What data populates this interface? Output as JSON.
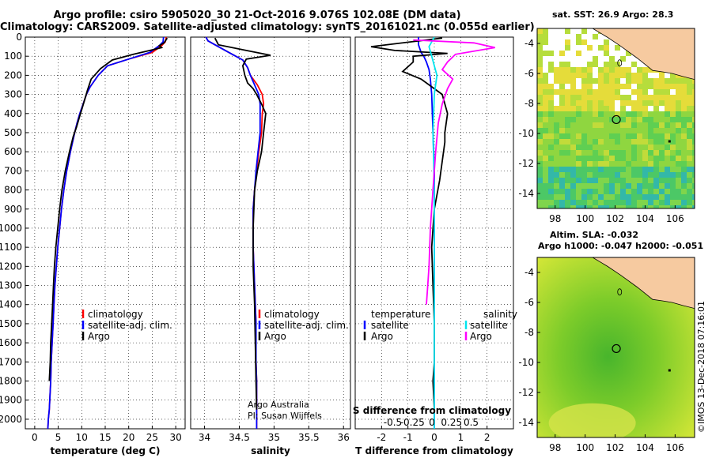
{
  "header": {
    "line1": "Argo profile: csiro 5905020_30 21-Oct-2016 9.076S 102.08E (DM data)",
    "line2": "Climatology: CARS2009. Satellite-adjusted climatology: synTS_20161021.nc (0.055d earlier)"
  },
  "colors": {
    "climatology": "#ff0000",
    "satellite": "#0000ff",
    "argo": "#000000",
    "satellite_salinity": "#00e5ee",
    "argo_salinity": "#ff00ff"
  },
  "chart_data": [
    {
      "type": "line",
      "xlabel": "temperature (deg C)",
      "ylabel": "",
      "xlim": [
        -2,
        32
      ],
      "ylim": [
        2050,
        0
      ],
      "xticks": [
        0,
        5,
        10,
        15,
        20,
        25,
        30
      ],
      "yticks": [
        0,
        100,
        200,
        300,
        400,
        500,
        600,
        700,
        800,
        900,
        1000,
        1100,
        1200,
        1300,
        1400,
        1500,
        1600,
        1700,
        1800,
        1900,
        2000
      ],
      "legend": [
        "climatology",
        "satellite-adj. clim.",
        "Argo"
      ],
      "legend_position": "lower-right",
      "series": [
        {
          "name": "climatology",
          "color": "#ff0000",
          "x": [
            28.0,
            27.8,
            27.0,
            25.0,
            20.0,
            15.5,
            13.5,
            11.8,
            11.0,
            10.3,
            9.6,
            9.0,
            8.5,
            7.6,
            6.8,
            6.2,
            5.7,
            5.3,
            4.9,
            4.6,
            4.3,
            4.1,
            3.9,
            3.7,
            3.5,
            3.4,
            3.2,
            3.1,
            2.9,
            2.8
          ],
          "y": [
            0,
            25,
            45,
            80,
            115,
            150,
            200,
            260,
            300,
            350,
            400,
            450,
            500,
            600,
            700,
            800,
            900,
            1000,
            1100,
            1200,
            1300,
            1400,
            1500,
            1600,
            1700,
            1800,
            1900,
            1950,
            2000,
            2050
          ]
        },
        {
          "name": "satellite-adj. clim.",
          "color": "#0000ff",
          "x": [
            27.4,
            27.3,
            26.5,
            24.5,
            20.0,
            15.5,
            13.5,
            11.8,
            11.0,
            10.3,
            9.6,
            9.0,
            8.5,
            7.6,
            6.8,
            6.2,
            5.7,
            5.3,
            4.9,
            4.6,
            4.3,
            4.1,
            3.9,
            3.7,
            3.5,
            3.4,
            3.2,
            3.1,
            2.9,
            2.8
          ],
          "y": [
            0,
            25,
            45,
            80,
            115,
            150,
            200,
            260,
            300,
            350,
            400,
            450,
            500,
            600,
            700,
            800,
            900,
            1000,
            1100,
            1200,
            1300,
            1400,
            1500,
            1600,
            1700,
            1800,
            1900,
            1950,
            2000,
            2050
          ]
        },
        {
          "name": "Argo",
          "color": "#000000",
          "x": [
            28.2,
            27.5,
            26.5,
            27.0,
            24.5,
            21.0,
            16.5,
            14.0,
            12.0,
            11.2,
            10.6,
            10.0,
            9.5,
            8.9,
            8.2,
            7.4,
            6.5,
            5.8,
            5.3,
            4.9,
            4.5,
            4.2,
            4.0,
            3.8,
            3.6,
            3.4,
            3.3,
            3.1
          ],
          "y": [
            5,
            30,
            45,
            55,
            70,
            90,
            120,
            165,
            220,
            280,
            330,
            380,
            420,
            470,
            520,
            600,
            700,
            800,
            900,
            1000,
            1100,
            1200,
            1300,
            1400,
            1500,
            1600,
            1700,
            1800
          ]
        }
      ]
    },
    {
      "type": "line",
      "xlabel": "salinity",
      "ylabel": "",
      "xlim": [
        33.8,
        36.1
      ],
      "ylim": [
        2050,
        0
      ],
      "xticks": [
        34,
        34.5,
        35,
        35.5,
        36
      ],
      "xticklabels": [
        "34",
        "34.5",
        "35",
        "35.5",
        "36"
      ],
      "legend": [
        "climatology",
        "satellite-adj. clim.",
        "Argo"
      ],
      "legend_position": "lower-right",
      "annotation": [
        "Argo Australia",
        "PI: Susan Wijffels"
      ],
      "series": [
        {
          "name": "climatology",
          "color": "#ff0000",
          "x": [
            34.02,
            34.05,
            34.15,
            34.35,
            34.55,
            34.62,
            34.66,
            34.76,
            34.83,
            34.85,
            34.83,
            34.82,
            34.78,
            34.75,
            34.72,
            34.7,
            34.7,
            34.7,
            34.71,
            34.72,
            34.73,
            34.74,
            34.74,
            34.74,
            34.75,
            34.75
          ],
          "y": [
            0,
            20,
            40,
            80,
            120,
            160,
            200,
            250,
            300,
            350,
            400,
            500,
            600,
            700,
            800,
            900,
            1000,
            1100,
            1200,
            1300,
            1400,
            1500,
            1600,
            1700,
            1800,
            2050
          ]
        },
        {
          "name": "satellite-adj. clim.",
          "color": "#0000ff",
          "x": [
            34.02,
            34.05,
            34.15,
            34.35,
            34.55,
            34.62,
            34.66,
            34.72,
            34.78,
            34.8,
            34.8,
            34.8,
            34.77,
            34.74,
            34.72,
            34.7,
            34.7,
            34.7,
            34.71,
            34.72,
            34.73,
            34.74,
            34.74,
            34.74,
            34.75,
            34.75
          ],
          "y": [
            0,
            20,
            40,
            80,
            120,
            160,
            200,
            250,
            300,
            350,
            400,
            500,
            600,
            700,
            800,
            900,
            1000,
            1100,
            1200,
            1300,
            1400,
            1500,
            1600,
            1700,
            1800,
            2050
          ]
        },
        {
          "name": "Argo",
          "color": "#000000",
          "x": [
            34.15,
            34.2,
            34.6,
            34.95,
            34.6,
            34.55,
            34.58,
            34.62,
            34.7,
            34.75,
            34.82,
            34.88,
            34.85,
            34.82,
            34.76,
            34.72,
            34.7,
            34.7,
            34.72,
            34.73,
            34.74,
            34.75
          ],
          "y": [
            5,
            40,
            70,
            95,
            115,
            150,
            200,
            240,
            270,
            300,
            350,
            400,
            500,
            600,
            700,
            800,
            1000,
            1200,
            1400,
            1600,
            1800,
            1950
          ]
        }
      ]
    },
    {
      "type": "line",
      "xlabel": "T difference from climatology",
      "secondary_xlabel": "S difference from climatology",
      "xlim": [
        -3,
        3
      ],
      "ylim": [
        2050,
        0
      ],
      "xticks": [
        -2,
        -1,
        0,
        1,
        2
      ],
      "secondary_xticks": [
        -0.5,
        -0.25,
        0,
        0.25,
        0.5
      ],
      "secondary_xticklabels": [
        "-0.5",
        "-0.25",
        "0",
        "0.25",
        "0.5"
      ],
      "legend_left_title": "temperature",
      "legend_right_title": "salinity",
      "legend": [
        "satellite",
        "Argo",
        "satellite",
        "Argo"
      ],
      "legend_position": "lower-right",
      "series": [
        {
          "name": "satellite",
          "group": "temperature",
          "color": "#0000ff",
          "x": [
            -0.6,
            -0.6,
            -0.5,
            -0.4,
            -0.3,
            -0.2,
            -0.15,
            -0.1,
            -0.05,
            0,
            0,
            0,
            0
          ],
          "y": [
            0,
            40,
            80,
            100,
            130,
            170,
            220,
            300,
            500,
            700,
            1000,
            1500,
            2050
          ]
        },
        {
          "name": "Argo",
          "group": "temperature",
          "color": "#000000",
          "x": [
            0.3,
            -2.4,
            -1.5,
            0.5,
            -0.8,
            -0.8,
            -1.2,
            -0.5,
            0.3,
            0.5,
            0.4,
            0.4,
            0.3,
            0.2,
            0.0,
            -0.1,
            -0.05,
            0.0,
            0.0,
            0.0,
            -0.05,
            0.0
          ],
          "y": [
            5,
            50,
            70,
            85,
            100,
            130,
            180,
            220,
            300,
            400,
            500,
            550,
            650,
            750,
            900,
            1100,
            1300,
            1500,
            1600,
            1700,
            1800,
            1950
          ]
        },
        {
          "name": "satellite",
          "group": "salinity",
          "color": "#00e5ee",
          "x": [
            0.0,
            -0.2,
            -0.1,
            0.1,
            0.0,
            -0.05,
            0.0,
            0.0,
            0.0,
            0.0
          ],
          "y": [
            0,
            50,
            100,
            200,
            300,
            500,
            800,
            1200,
            1600,
            2050
          ]
        },
        {
          "name": "Argo",
          "group": "salinity",
          "color": "#ff00ff",
          "x": [
            -0.8,
            1.5,
            2.3,
            0.8,
            0.5,
            0.3,
            0.7,
            0.5,
            0.3,
            0.15,
            0.05,
            -0.05,
            -0.15,
            -0.2,
            -0.25,
            -0.3
          ],
          "y": [
            15,
            30,
            55,
            90,
            130,
            170,
            220,
            270,
            350,
            450,
            600,
            800,
            1000,
            1200,
            1300,
            1400
          ]
        }
      ]
    }
  ],
  "maps": [
    {
      "title": "sat. SST: 26.9 Argo: 28.3",
      "xticks": [
        98,
        100,
        102,
        104,
        106
      ],
      "yticks": [
        -4,
        -6,
        -8,
        -10,
        -12,
        -14
      ],
      "xlim": [
        96.8,
        107.3
      ],
      "ylim": [
        -15,
        -3
      ]
    },
    {
      "title": "Altim. SLA: -0.032",
      "subtitle": "Argo h1000: -0.047 h2000: -0.051",
      "xticks": [
        98,
        100,
        102,
        104,
        106
      ],
      "yticks": [
        -4,
        -6,
        -8,
        -10,
        -12,
        -14
      ],
      "xlim": [
        96.8,
        107.3
      ],
      "ylim": [
        -15,
        -3
      ]
    }
  ],
  "float_position": {
    "lon": 102.08,
    "lat": -9.076
  },
  "footer": {
    "stamp": "©IMOS 13-Dec-2018 07:16:01"
  }
}
